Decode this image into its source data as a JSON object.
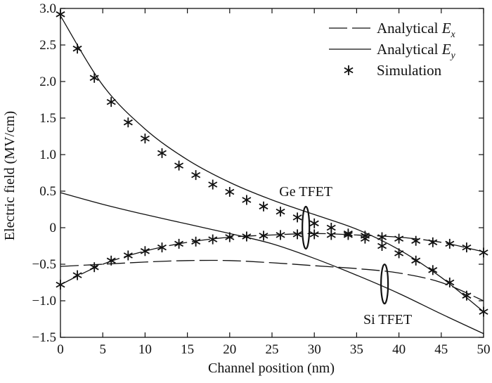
{
  "chart_data": {
    "type": "line",
    "xlabel": "Channel position (nm)",
    "ylabel": "Electric field (MV/cm)",
    "xlim": [
      0,
      50
    ],
    "ylim": [
      -1.5,
      3.0
    ],
    "xticks": [
      0,
      5,
      10,
      15,
      20,
      25,
      30,
      35,
      40,
      45,
      50
    ],
    "yticks": [
      -1.5,
      -1.0,
      -0.5,
      0,
      0.5,
      1.0,
      1.5,
      2.0,
      2.5,
      3.0
    ],
    "xtick_labels": [
      "0",
      "5",
      "10",
      "15",
      "20",
      "25",
      "30",
      "35",
      "40",
      "45",
      "50"
    ],
    "ytick_labels": [
      "−1.5",
      "−1.0",
      "−0.5",
      "0",
      "0.5",
      "1.0",
      "1.5",
      "2.0",
      "2.5",
      "3.0"
    ],
    "grid": false,
    "legend_position": "top-right",
    "legend": [
      {
        "text": "Analytical ",
        "sub": "x",
        "style": "dashed"
      },
      {
        "text": "Analytical ",
        "sub": "y",
        "style": "solid"
      },
      {
        "text": "Simulation",
        "sub": "",
        "style": "asterisk"
      }
    ],
    "legend_var": "E",
    "annotations": [
      {
        "text": "Ge TFET",
        "x": 29,
        "y": 0.5
      },
      {
        "text": "Si TFET",
        "x": 38.5,
        "y": -1.25
      }
    ],
    "series": [
      {
        "style": "solid",
        "x": [
          0,
          5,
          10,
          15,
          20,
          25,
          30,
          35,
          40,
          45,
          50
        ],
        "y": [
          2.9,
          1.95,
          1.35,
          0.93,
          0.62,
          0.38,
          0.18,
          -0.02,
          -0.3,
          -0.68,
          -1.15
        ]
      },
      {
        "style": "solid",
        "x": [
          0,
          5,
          10,
          15,
          20,
          25,
          30,
          35,
          40,
          45,
          50
        ],
        "y": [
          0.48,
          0.32,
          0.18,
          0.05,
          -0.08,
          -0.22,
          -0.42,
          -0.65,
          -0.9,
          -1.18,
          -1.45
        ]
      },
      {
        "style": "dashed",
        "x": [
          0,
          5,
          10,
          15,
          20,
          25,
          30,
          35,
          40,
          45,
          50
        ],
        "y": [
          -0.53,
          -0.5,
          -0.47,
          -0.45,
          -0.45,
          -0.48,
          -0.52,
          -0.56,
          -0.62,
          -0.75,
          -1.0
        ]
      },
      {
        "style": "dashed",
        "x": [
          0,
          5,
          10,
          15,
          20,
          25,
          30,
          35,
          40,
          45,
          50
        ],
        "y": [
          -0.78,
          -0.5,
          -0.32,
          -0.2,
          -0.13,
          -0.1,
          -0.08,
          -0.1,
          -0.13,
          -0.2,
          -0.33
        ]
      },
      {
        "style": "asterisk",
        "x": [
          0,
          2,
          4,
          6,
          8,
          10,
          12,
          14,
          16,
          18,
          20,
          22,
          24,
          26,
          28,
          30,
          32,
          34,
          36,
          38,
          40,
          42,
          44,
          46,
          48,
          50
        ],
        "y": [
          2.92,
          2.45,
          2.05,
          1.72,
          1.44,
          1.22,
          1.02,
          0.85,
          0.72,
          0.59,
          0.49,
          0.38,
          0.29,
          0.22,
          0.14,
          0.06,
          0.0,
          -0.08,
          -0.15,
          -0.25,
          -0.35,
          -0.45,
          -0.58,
          -0.75,
          -0.93,
          -1.15
        ]
      },
      {
        "style": "asterisk",
        "x": [
          0,
          2,
          4,
          6,
          8,
          10,
          12,
          14,
          16,
          18,
          20,
          22,
          24,
          26,
          28,
          30,
          32,
          34,
          36,
          38,
          40,
          42,
          44,
          46,
          48,
          50
        ],
        "y": [
          -0.78,
          -0.65,
          -0.54,
          -0.45,
          -0.38,
          -0.32,
          -0.27,
          -0.22,
          -0.19,
          -0.16,
          -0.13,
          -0.12,
          -0.11,
          -0.1,
          -0.09,
          -0.09,
          -0.1,
          -0.1,
          -0.11,
          -0.13,
          -0.15,
          -0.18,
          -0.2,
          -0.22,
          -0.27,
          -0.34
        ]
      }
    ]
  }
}
